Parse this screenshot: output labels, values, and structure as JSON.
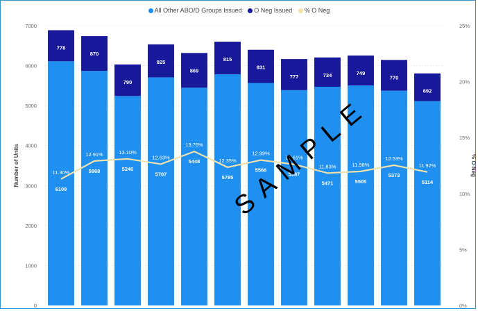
{
  "legend": {
    "items": [
      {
        "label": "All Other ABO/D Groups Issued",
        "color": "#1f8ff0"
      },
      {
        "label": "O Neg Issued",
        "color": "#17199a"
      },
      {
        "label": "% O Neg",
        "color": "#f2e3a6"
      }
    ]
  },
  "watermark": "SAMPLE",
  "colors": {
    "other": "#1f8ff0",
    "oneg": "#17199a",
    "line": "#efe2ac",
    "frame": "#2f95cc"
  },
  "chart_data": {
    "type": "bar",
    "stacked": true,
    "title": "",
    "xlabel": "",
    "ylabel": "Number of Units",
    "y2label": "% O Neg",
    "ylim": [
      0,
      7000
    ],
    "y_ticks": [
      "0",
      "1000",
      "2000",
      "3000",
      "4000",
      "5000",
      "6000",
      "7000"
    ],
    "y2lim": [
      0,
      25
    ],
    "y2_ticks": [
      "0%",
      "5%",
      "10%",
      "15%",
      "20%",
      "25%"
    ],
    "grid": true,
    "legend_position": "top",
    "series": [
      {
        "name": "All Other ABO/D Groups Issued",
        "values": [
          6109,
          5868,
          5240,
          5707,
          5448,
          5785,
          5566,
          5387,
          5471,
          5505,
          5373,
          5114
        ]
      },
      {
        "name": "O Neg Issued",
        "values": [
          778,
          870,
          790,
          825,
          869,
          815,
          831,
          777,
          734,
          749,
          770,
          692
        ]
      },
      {
        "name": "% O Neg",
        "axis": "right",
        "type": "line",
        "values": [
          11.3,
          12.91,
          13.1,
          12.63,
          13.76,
          12.35,
          12.99,
          12.61,
          11.83,
          11.98,
          12.53,
          11.92
        ]
      }
    ],
    "percent_labels": [
      "11.30%",
      "12.91%",
      "13.10%",
      "12.63%",
      "13.76%",
      "12.35%",
      "12.99%",
      "12.61%",
      "11.83%",
      "11.98%",
      "12.53%",
      "11.92%"
    ]
  }
}
